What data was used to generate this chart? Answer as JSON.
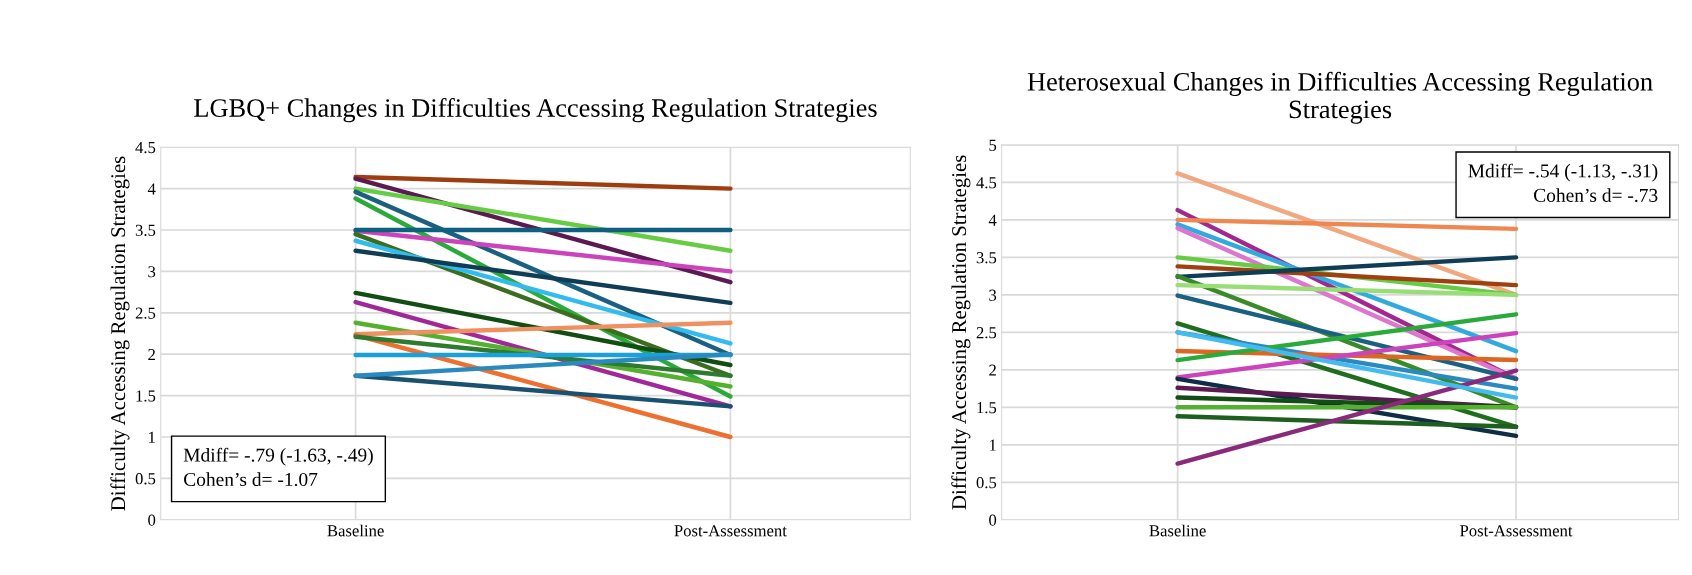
{
  "chart_data": [
    {
      "type": "line",
      "title": "LGBQ+ Changes in Difficulties Accessing Regulation Strategies",
      "ylabel": "Difficulty Accessing Regulation Strategies",
      "categories": [
        "Baseline",
        "Post-Assessment"
      ],
      "ylim": [
        0,
        4.5
      ],
      "yticks": [
        0,
        0.5,
        1,
        1.5,
        2,
        2.5,
        3,
        3.5,
        4,
        4.5
      ],
      "grid": true,
      "legend": false,
      "marker": "none",
      "line_style": "solid",
      "annotations": [
        "Mdiff= -.79 (-1.63, -.49)\nCohen’s d= -1.07"
      ],
      "series": [
        {
          "color": "#9e3e10",
          "values": [
            4.14,
            4.0
          ]
        },
        {
          "color": "#5c1a52",
          "values": [
            4.12,
            2.87
          ]
        },
        {
          "color": "#66cc44",
          "values": [
            4.0,
            3.25
          ]
        },
        {
          "color": "#1a6080",
          "values": [
            3.96,
            1.99
          ]
        },
        {
          "color": "#2aaa3a",
          "values": [
            3.88,
            1.49
          ]
        },
        {
          "color": "#cc44bb",
          "values": [
            3.49,
            3.0
          ]
        },
        {
          "color": "#0e5f80",
          "values": [
            3.5,
            3.5
          ]
        },
        {
          "color": "#3a6e1e",
          "values": [
            3.45,
            1.74
          ]
        },
        {
          "color": "#33bbee",
          "values": [
            3.37,
            2.13
          ]
        },
        {
          "color": "#0f3d55",
          "values": [
            3.25,
            2.62
          ]
        },
        {
          "color": "#124d14",
          "values": [
            2.74,
            1.87
          ]
        },
        {
          "color": "#a02898",
          "values": [
            2.63,
            1.37
          ]
        },
        {
          "color": "#55b030",
          "values": [
            2.38,
            1.61
          ]
        },
        {
          "color": "#ee9060",
          "values": [
            2.24,
            2.38
          ]
        },
        {
          "color": "#ee7030",
          "values": [
            2.23,
            1.0
          ]
        },
        {
          "color": "#2e7a2e",
          "values": [
            2.21,
            1.74
          ]
        },
        {
          "color": "#1aa0dd",
          "values": [
            1.99,
            1.99
          ]
        },
        {
          "color": "#1a5070",
          "values": [
            1.74,
            1.37
          ]
        },
        {
          "color": "#2a8ac0",
          "values": [
            1.74,
            2.0
          ]
        }
      ]
    },
    {
      "type": "line",
      "title": "Heterosexual Changes in Difficulties Accessing Regulation Strategies",
      "ylabel": "Difficulty Accessing Regulation Strategies",
      "categories": [
        "Baseline",
        "Post-Assessment"
      ],
      "ylim": [
        0,
        5
      ],
      "yticks": [
        0,
        0.5,
        1,
        1.5,
        2,
        2.5,
        3,
        3.5,
        4,
        4.5,
        5
      ],
      "grid": true,
      "legend": false,
      "marker": "none",
      "line_style": "solid",
      "annotations": [
        "Mdiff= -.54 (-1.13, -.31)\nCohen’s d= -.73"
      ],
      "series": [
        {
          "color": "#f0a880",
          "values": [
            4.62,
            3.0
          ]
        },
        {
          "color": "#a02890",
          "values": [
            4.13,
            1.88
          ]
        },
        {
          "color": "#ee8850",
          "values": [
            4.0,
            3.88
          ]
        },
        {
          "color": "#33aadd",
          "values": [
            3.94,
            2.25
          ]
        },
        {
          "color": "#dd77cc",
          "values": [
            3.89,
            1.88
          ]
        },
        {
          "color": "#66cc44",
          "values": [
            3.5,
            3.0
          ]
        },
        {
          "color": "#9e4010",
          "values": [
            3.38,
            3.13
          ]
        },
        {
          "color": "#0f3d55",
          "values": [
            3.24,
            3.5
          ]
        },
        {
          "color": "#3a8a2a",
          "values": [
            3.25,
            1.5
          ]
        },
        {
          "color": "#99dd77",
          "values": [
            3.13,
            3.0
          ]
        },
        {
          "color": "#1a6080",
          "values": [
            2.99,
            1.88
          ]
        },
        {
          "color": "#1e6e1e",
          "values": [
            2.62,
            1.24
          ]
        },
        {
          "color": "#2a8ac0",
          "values": [
            2.5,
            1.75
          ]
        },
        {
          "color": "#dd6620",
          "values": [
            2.25,
            2.13
          ]
        },
        {
          "color": "#2aaa3a",
          "values": [
            2.13,
            2.74
          ]
        },
        {
          "color": "#cc44bb",
          "values": [
            1.9,
            2.49
          ]
        },
        {
          "color": "#0f2d45",
          "values": [
            1.88,
            1.12
          ]
        },
        {
          "color": "#5c1a52",
          "values": [
            1.76,
            1.5
          ]
        },
        {
          "color": "#124d14",
          "values": [
            1.63,
            1.5
          ]
        },
        {
          "color": "#55b030",
          "values": [
            1.5,
            1.5
          ]
        },
        {
          "color": "#1e5e1e",
          "values": [
            1.38,
            1.24
          ]
        },
        {
          "color": "#8a2a7a",
          "values": [
            0.75,
            1.99
          ]
        },
        {
          "color": "#44bbee",
          "values": [
            2.5,
            1.63
          ]
        }
      ]
    }
  ]
}
